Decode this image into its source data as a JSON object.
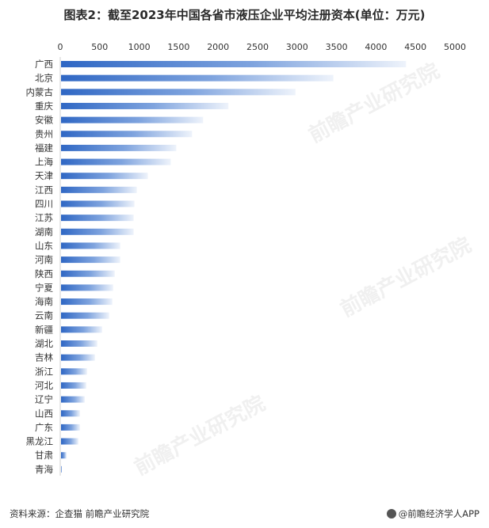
{
  "title": "图表2：截至2023年中国各省市液压企业平均注册资本(单位：万元)",
  "source_text": "资料来源：企查猫 前瞻产业研究院",
  "brand_text": "@前瞻经济学人APP",
  "watermark_text": "前瞻产业研究院",
  "colors": {
    "bar_dark": "#2f67c4",
    "bar_light": "#eef3fb",
    "axis_text": "#333333",
    "grid": "#e6e6e6"
  },
  "chart_data": {
    "type": "bar",
    "orientation": "horizontal",
    "title": "图表2：截至2023年中国各省市液压企业平均注册资本(单位：万元)",
    "xlim": [
      0,
      5000
    ],
    "x_ticks": [
      0,
      500,
      1000,
      1500,
      2000,
      2500,
      3000,
      3500,
      4000,
      4500,
      5000
    ],
    "categories": [
      "广西",
      "北京",
      "内蒙古",
      "重庆",
      "安徽",
      "贵州",
      "福建",
      "上海",
      "天津",
      "江西",
      "四川",
      "江苏",
      "湖南",
      "山东",
      "河南",
      "陕西",
      "宁夏",
      "海南",
      "云南",
      "新疆",
      "湖北",
      "吉林",
      "浙江",
      "河北",
      "辽宁",
      "山西",
      "广东",
      "黑龙江",
      "甘肃",
      "青海"
    ],
    "values": [
      4370,
      3450,
      2970,
      2120,
      1800,
      1660,
      1460,
      1390,
      1100,
      960,
      930,
      920,
      920,
      750,
      750,
      680,
      660,
      650,
      610,
      520,
      460,
      430,
      330,
      320,
      300,
      240,
      240,
      220,
      70,
      10
    ]
  }
}
